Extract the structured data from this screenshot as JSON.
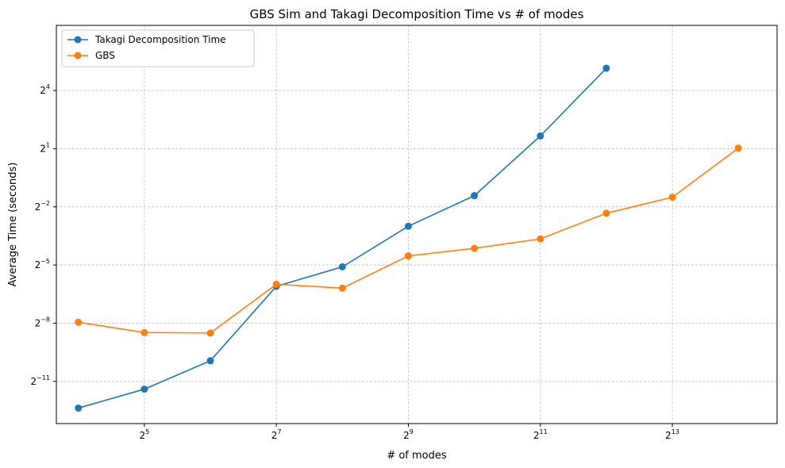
{
  "chart_data": {
    "type": "line",
    "title": "GBS Sim and Takagi Decomposition Time vs # of modes",
    "xlabel": "# of modes",
    "ylabel": "Average Time (seconds)",
    "xscale": "log2",
    "yscale": "log2",
    "xlim": [
      12.7,
      24600
    ],
    "ylim": [
      0.000108,
      164
    ],
    "x_ticks": [
      {
        "value": 32,
        "base": "2",
        "exp": "5"
      },
      {
        "value": 128,
        "base": "2",
        "exp": "7"
      },
      {
        "value": 512,
        "base": "2",
        "exp": "9"
      },
      {
        "value": 2048,
        "base": "2",
        "exp": "11"
      },
      {
        "value": 8192,
        "base": "2",
        "exp": "13"
      }
    ],
    "y_ticks": [
      {
        "value": 16,
        "base": "2",
        "exp": "4"
      },
      {
        "value": 2,
        "base": "2",
        "exp": "1"
      },
      {
        "value": 0.25,
        "base": "2",
        "exp": "−2"
      },
      {
        "value": 0.03125,
        "base": "2",
        "exp": "−5"
      },
      {
        "value": 0.00390625,
        "base": "2",
        "exp": "−8"
      },
      {
        "value": 0.00048828125,
        "base": "2",
        "exp": "−11"
      }
    ],
    "grid": true,
    "legend_position": "top-left",
    "x": [
      16,
      32,
      64,
      128,
      256,
      512,
      1024,
      2048,
      4096,
      8192,
      16384
    ],
    "series": [
      {
        "name": "Takagi Decomposition Time",
        "color": "#1f77b4",
        "values": [
          0.000188,
          0.00037,
          0.00102,
          0.0146,
          0.0293,
          0.125,
          0.373,
          3.15,
          35.5,
          null,
          null
        ]
      },
      {
        "name": "GBS",
        "color": "#ff7f0e",
        "values": [
          0.00404,
          0.0028,
          0.00275,
          0.0157,
          0.0137,
          0.0433,
          0.0568,
          0.0796,
          0.199,
          0.353,
          2.04
        ]
      }
    ]
  }
}
